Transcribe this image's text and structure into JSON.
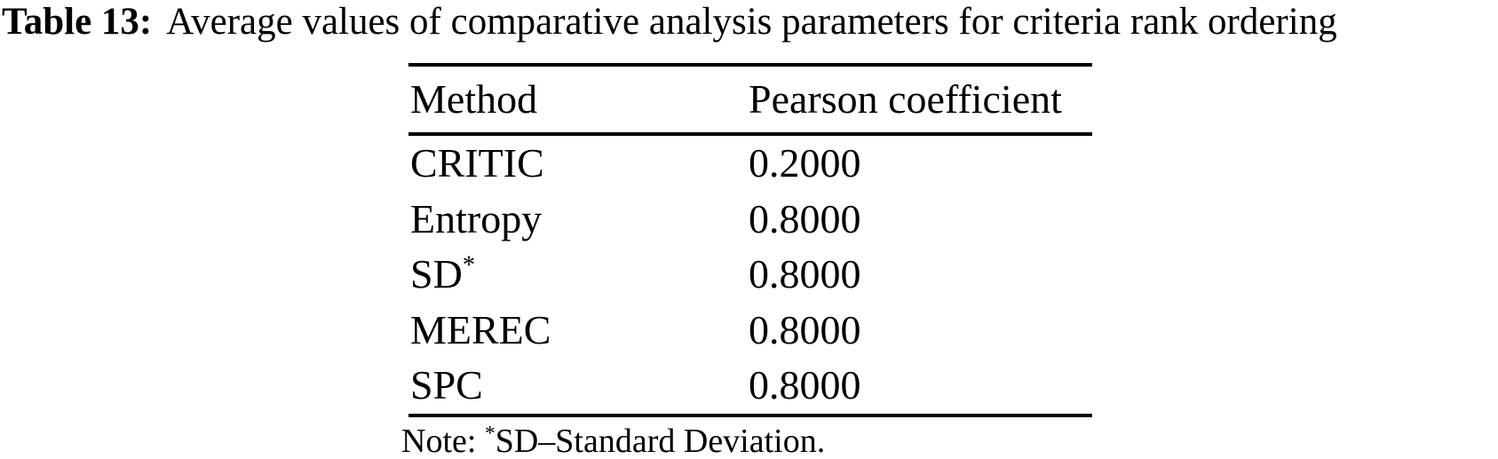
{
  "caption": {
    "label": "Table 13:",
    "text": "Average values of comparative analysis parameters for criteria rank ordering"
  },
  "table": {
    "columns": [
      "Method",
      "Pearson coefficient"
    ],
    "rows": [
      {
        "method": "CRITIC",
        "method_sup": "",
        "value": "0.2000"
      },
      {
        "method": "Entropy",
        "method_sup": "",
        "value": "0.8000"
      },
      {
        "method": "SD",
        "method_sup": "*",
        "value": "0.8000"
      },
      {
        "method": "MEREC",
        "method_sup": "",
        "value": "0.8000"
      },
      {
        "method": "SPC",
        "method_sup": "",
        "value": "0.8000"
      }
    ]
  },
  "note": {
    "prefix": "Note: ",
    "sup": "*",
    "text": "SD–Standard Deviation."
  },
  "colors": {
    "text": "#000000",
    "background": "#ffffff",
    "rule": "#000000"
  },
  "chart_data": {
    "type": "table",
    "title": "Table 13: Average values of comparative analysis parameters for criteria rank ordering",
    "columns": [
      "Method",
      "Pearson coefficient"
    ],
    "rows": [
      [
        "CRITIC",
        0.2
      ],
      [
        "Entropy",
        0.8
      ],
      [
        "SD*",
        0.8
      ],
      [
        "MEREC",
        0.8
      ],
      [
        "SPC",
        0.8
      ]
    ],
    "footnote": "Note: *SD–Standard Deviation."
  }
}
